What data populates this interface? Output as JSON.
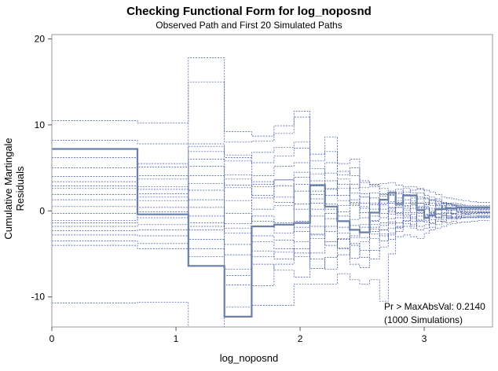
{
  "chart_data": {
    "type": "line",
    "title": "Checking Functional Form for log_noposnd",
    "subtitle": "Observed Path and First 20 Simulated Paths",
    "xlabel": "log_noposnd",
    "ylabel": "Cumulative Martingale Residuals",
    "xlim": [
      0,
      3.55
    ],
    "ylim": [
      -13.5,
      20.5
    ],
    "x_ticks": [
      0,
      1,
      2,
      3
    ],
    "y_ticks": [
      -10,
      0,
      10,
      20
    ],
    "grid": false,
    "legend": "none",
    "annotation": {
      "line1": "Pr > MaxAbsVal: 0.2140",
      "line2": "(1000 Simulations)"
    },
    "colors": {
      "observed": "#6a7fa8",
      "simulated": "#3b52a3",
      "frame": "#9a9a9a"
    },
    "breaks": [
      0,
      0.69,
      1.1,
      1.39,
      1.61,
      1.79,
      1.95,
      2.08,
      2.2,
      2.3,
      2.4,
      2.48,
      2.56,
      2.64,
      2.71,
      2.77,
      2.83,
      2.89,
      2.94,
      3.0,
      3.04,
      3.09,
      3.14,
      3.18,
      3.22,
      3.26,
      3.3,
      3.33,
      3.37,
      3.4,
      3.43,
      3.47,
      3.5,
      3.53
    ],
    "series": [
      {
        "role": "observed",
        "step_x": [
          0,
          0.69,
          1.1,
          1.39,
          1.61,
          1.79,
          1.95,
          2.08,
          2.2,
          2.3,
          2.4,
          2.48,
          2.56,
          2.64,
          2.71,
          2.77,
          2.83,
          2.89,
          2.94,
          3.0,
          3.04,
          3.09,
          3.14,
          3.18,
          3.22,
          3.26,
          3.3,
          3.33,
          3.37,
          3.4,
          3.43,
          3.47,
          3.5,
          3.53
        ],
        "step_y": [
          7.2,
          -0.4,
          -6.4,
          -12.3,
          -1.8,
          -1.6,
          -1.4,
          3.0,
          0.5,
          -1.2,
          -2.2,
          -2.5,
          -0.2,
          1.3,
          2.1,
          0.8,
          1.8,
          1.8,
          0.1,
          -0.8,
          -0.5,
          0.2,
          0.2,
          0.3,
          0.3,
          0.4,
          0.4,
          0.4,
          0.4,
          0.4,
          0.4,
          0.4,
          0.4,
          0.4
        ]
      },
      {
        "role": "simulated",
        "step_y": [
          10.5,
          10.2,
          17.8,
          9.2,
          8.7,
          9.9,
          11.6,
          5.8,
          8.6,
          5.5,
          6.0,
          3.5,
          3.1,
          3.2,
          3.3,
          3.0,
          2.8,
          2.8,
          2.6,
          2.4,
          2.2,
          1.9,
          1.6,
          1.5,
          1.4,
          1.3,
          1.2,
          1.2,
          1.1,
          1.1,
          1.0,
          1.0,
          1.0,
          1.0
        ]
      },
      {
        "role": "simulated",
        "step_y": [
          -10.7,
          -10.6,
          -13.5,
          -11.2,
          -11.0,
          -11.0,
          -8.5,
          -8.5,
          -8.5,
          -7.3,
          -8.0,
          -8.5,
          -8.0,
          -10.5,
          -5.0,
          -3.0,
          -2.8,
          -3.0,
          -3.2,
          -2.6,
          -2.2,
          -2.0,
          -1.8,
          -1.6,
          -1.5,
          -1.4,
          -1.3,
          -1.3,
          -1.2,
          -1.2,
          -1.1,
          -1.1,
          -1.1,
          -1.1
        ]
      },
      {
        "role": "simulated",
        "step_y": [
          8.2,
          7.8,
          15.0,
          8.0,
          8.1,
          9.0,
          10.9,
          6.6,
          6.9,
          4.2,
          5.0,
          2.7,
          2.8,
          2.6,
          2.3,
          2.0,
          1.8,
          1.7,
          1.6,
          1.5,
          1.3,
          1.1,
          0.9,
          0.8,
          0.7,
          0.6,
          0.6,
          0.5,
          0.5,
          0.5,
          0.5,
          0.5,
          0.5,
          0.5
        ]
      },
      {
        "role": "simulated",
        "step_y": [
          4.0,
          5.5,
          7.8,
          6.2,
          6.8,
          7.4,
          8.0,
          2.3,
          3.5,
          1.2,
          2.6,
          3.3,
          3.0,
          2.0,
          0.9,
          1.5,
          2.2,
          2.4,
          2.5,
          1.8,
          1.6,
          1.2,
          0.6,
          0.2,
          0.1,
          -0.1,
          -0.3,
          -0.4,
          -0.3,
          -0.3,
          -0.2,
          -0.2,
          -0.2,
          -0.2
        ]
      },
      {
        "role": "simulated",
        "step_y": [
          2.6,
          3.7,
          7.5,
          6.5,
          1.8,
          1.0,
          2.3,
          -2.8,
          -3.6,
          -3.3,
          -5.5,
          -3.6,
          -1.9,
          -2.2,
          -0.4,
          0.4,
          0.5,
          0.8,
          0.5,
          -0.5,
          -1.0,
          -1.2,
          -1.3,
          -1.4,
          -1.2,
          -0.8,
          -0.5,
          -0.4,
          -0.5,
          -0.5,
          -0.6,
          -0.6,
          -0.6,
          -0.6
        ]
      },
      {
        "role": "simulated",
        "step_y": [
          1.9,
          2.5,
          6.9,
          5.8,
          5.6,
          6.4,
          7.3,
          4.9,
          2.6,
          3.7,
          2.1,
          0.9,
          -0.6,
          0.9,
          1.8,
          2.5,
          1.9,
          1.2,
          0.4,
          0.8,
          1.2,
          0.6,
          0.3,
          0.0,
          -0.4,
          -0.7,
          -0.8,
          -0.7,
          -0.7,
          -0.7,
          -0.7,
          -0.7,
          -0.7,
          -0.7
        ]
      },
      {
        "role": "simulated",
        "step_y": [
          1.3,
          2.0,
          6.0,
          4.2,
          4.1,
          5.2,
          5.6,
          -0.6,
          -2.4,
          -1.2,
          0.6,
          -0.8,
          1.5,
          0.7,
          -0.9,
          -0.3,
          0.9,
          1.5,
          2.1,
          1.4,
          0.9,
          0.4,
          0.8,
          0.9,
          0.7,
          0.5,
          0.4,
          0.3,
          0.3,
          0.3,
          0.3,
          0.3,
          0.3,
          0.3
        ]
      },
      {
        "role": "simulated",
        "step_y": [
          0.5,
          1.2,
          5.2,
          3.0,
          3.1,
          3.6,
          4.5,
          1.4,
          0.2,
          -4.3,
          -6.2,
          -6.6,
          -4.6,
          -2.7,
          -3.3,
          -2.4,
          -1.2,
          -0.7,
          -1.8,
          -1.6,
          -0.7,
          0.1,
          -0.2,
          -0.6,
          -0.9,
          -0.7,
          -0.5,
          -0.5,
          -0.5,
          -0.5,
          -0.5,
          -0.5,
          -0.5,
          -0.5
        ]
      },
      {
        "role": "simulated",
        "step_y": [
          -0.3,
          0.4,
          4.1,
          2.7,
          1.5,
          2.9,
          -1.2,
          0.2,
          1.8,
          2.6,
          0.8,
          1.6,
          0.2,
          -0.8,
          0.1,
          1.0,
          -0.4,
          -0.9,
          -0.2,
          0.7,
          1.3,
          1.4,
          0.9,
          0.6,
          0.6,
          0.4,
          0.2,
          0.2,
          0.2,
          0.2,
          0.2,
          0.2,
          0.2,
          0.2
        ]
      },
      {
        "role": "simulated",
        "step_y": [
          -1.1,
          -0.8,
          3.2,
          1.2,
          0.2,
          0.6,
          0.2,
          -1.8,
          -4.0,
          -3.2,
          -1.7,
          -2.5,
          -1.6,
          -1.4,
          -0.1,
          0.6,
          0.6,
          -0.2,
          -1.0,
          -1.1,
          -0.6,
          -0.3,
          0.5,
          0.4,
          0.2,
          0.0,
          -0.1,
          -0.1,
          -0.1,
          -0.1,
          -0.1,
          -0.1,
          -0.1,
          -0.1
        ]
      },
      {
        "role": "simulated",
        "step_y": [
          -1.8,
          -1.6,
          2.4,
          -0.3,
          -1.2,
          -1.4,
          -2.4,
          -4.9,
          -3.6,
          -4.4,
          -2.9,
          -1.9,
          -3.2,
          -3.5,
          -2.0,
          -1.4,
          -0.8,
          -1.6,
          -2.2,
          -2.0,
          -1.5,
          -0.8,
          -0.5,
          -0.3,
          -0.4,
          -0.6,
          -0.7,
          -0.7,
          -0.7,
          -0.7,
          -0.7,
          -0.7,
          -0.7,
          -0.7
        ]
      },
      {
        "role": "simulated",
        "step_y": [
          -2.3,
          -2.2,
          1.3,
          -1.5,
          2.8,
          3.6,
          0.8,
          -3.2,
          -1.8,
          0.6,
          1.3,
          0.5,
          -1.1,
          -0.3,
          0.4,
          -0.2,
          0.3,
          1.0,
          0.9,
          0.5,
          0.1,
          -0.4,
          -0.8,
          -0.9,
          -0.7,
          -0.4,
          -0.3,
          -0.3,
          -0.3,
          -0.3,
          -0.3,
          -0.3,
          -0.3,
          -0.3
        ]
      },
      {
        "role": "simulated",
        "step_y": [
          -2.8,
          -2.9,
          0.4,
          -2.6,
          -2.9,
          -3.4,
          -3.6,
          -6.7,
          -5.4,
          -2.6,
          -3.8,
          -4.6,
          -2.7,
          -2.2,
          -1.3,
          -2.0,
          -1.8,
          -2.0,
          -1.2,
          -0.9,
          -1.4,
          -1.6,
          -1.2,
          -0.8,
          -0.3,
          0.2,
          0.4,
          0.5,
          0.5,
          0.5,
          0.5,
          0.5,
          0.5,
          0.5
        ]
      },
      {
        "role": "simulated",
        "step_y": [
          -3.5,
          -3.8,
          -0.6,
          -3.9,
          -3.6,
          -4.4,
          -5.3,
          0.9,
          2.5,
          1.8,
          3.1,
          2.0,
          0.7,
          1.9,
          1.1,
          0.4,
          -0.6,
          -1.2,
          0.3,
          0.4,
          -0.3,
          -0.7,
          -0.5,
          -0.2,
          0.1,
          0.1,
          0.2,
          0.2,
          0.2,
          0.2,
          0.2,
          0.2,
          0.2,
          0.2
        ]
      },
      {
        "role": "simulated",
        "step_y": [
          -4.0,
          -4.4,
          -1.4,
          -5.1,
          -4.7,
          -5.6,
          -4.4,
          4.3,
          5.6,
          4.6,
          4.1,
          1.6,
          -2.1,
          -1.7,
          -1.5,
          -0.8,
          0.1,
          0.3,
          -0.6,
          -1.3,
          -1.9,
          -1.0,
          -0.3,
          0.1,
          0.3,
          0.2,
          0.1,
          0.1,
          0.1,
          0.1,
          0.1,
          0.1,
          0.1,
          0.1
        ]
      },
      {
        "role": "simulated",
        "step_y": [
          6.2,
          5.1,
          -2.2,
          -2.0,
          -0.6,
          -2.6,
          3.1,
          1.9,
          -0.9,
          -0.6,
          -2.2,
          -3.1,
          -1.2,
          0.2,
          1.9,
          2.2,
          2.6,
          2.1,
          1.4,
          1.0,
          0.6,
          0.9,
          1.0,
          0.8,
          0.6,
          0.3,
          0.0,
          -0.1,
          -0.1,
          -0.1,
          -0.1,
          -0.1,
          -0.1,
          -0.1
        ]
      },
      {
        "role": "simulated",
        "step_y": [
          5.0,
          2.8,
          -3.3,
          -6.8,
          -6.2,
          -6.9,
          -7.7,
          -2.7,
          -0.3,
          -1.9,
          -4.0,
          -5.4,
          -5.6,
          -4.2,
          -2.8,
          -1.9,
          -1.1,
          -0.4,
          -0.3,
          0.2,
          -0.1,
          -0.4,
          -0.6,
          -0.8,
          -0.8,
          -0.9,
          -0.8,
          -0.8,
          -0.8,
          -0.8,
          -0.8,
          -0.8,
          -0.8,
          -0.8
        ]
      },
      {
        "role": "simulated",
        "step_y": [
          2.9,
          1.6,
          -4.4,
          -7.5,
          -5.3,
          -4.8,
          -1.9,
          2.9,
          4.4,
          3.1,
          1.0,
          -0.2,
          0.9,
          1.3,
          0.3,
          -0.5,
          -1.5,
          -1.8,
          -1.1,
          -0.4,
          0.3,
          0.7,
          0.4,
          0.4,
          0.5,
          0.6,
          0.5,
          0.4,
          0.4,
          0.4,
          0.4,
          0.4,
          0.4,
          0.4
        ]
      },
      {
        "role": "simulated",
        "step_y": [
          -1.4,
          -0.1,
          -5.3,
          -8.6,
          -8.7,
          -6.2,
          -4.9,
          -5.6,
          -6.8,
          -5.1,
          -3.1,
          -1.6,
          -2.4,
          -2.9,
          -2.6,
          -1.8,
          -0.2,
          0.6,
          0.9,
          0.3,
          -0.2,
          -0.8,
          -1.0,
          -0.6,
          -0.3,
          -0.2,
          -0.2,
          -0.2,
          -0.2,
          -0.2,
          -0.2,
          -0.2,
          -0.2,
          -0.2
        ]
      },
      {
        "role": "simulated",
        "step_y": [
          3.4,
          4.1,
          -1.8,
          3.7,
          3.4,
          1.6,
          3.9,
          3.5,
          0.8,
          -0.1,
          -1.0,
          0.3,
          2.1,
          1.7,
          0.9,
          1.2,
          1.3,
          0.8,
          0.0,
          -0.6,
          -0.4,
          0.1,
          0.6,
          0.8,
          0.9,
          0.8,
          0.7,
          0.6,
          0.6,
          0.6,
          0.6,
          0.6,
          0.6,
          0.6
        ]
      }
    ]
  }
}
